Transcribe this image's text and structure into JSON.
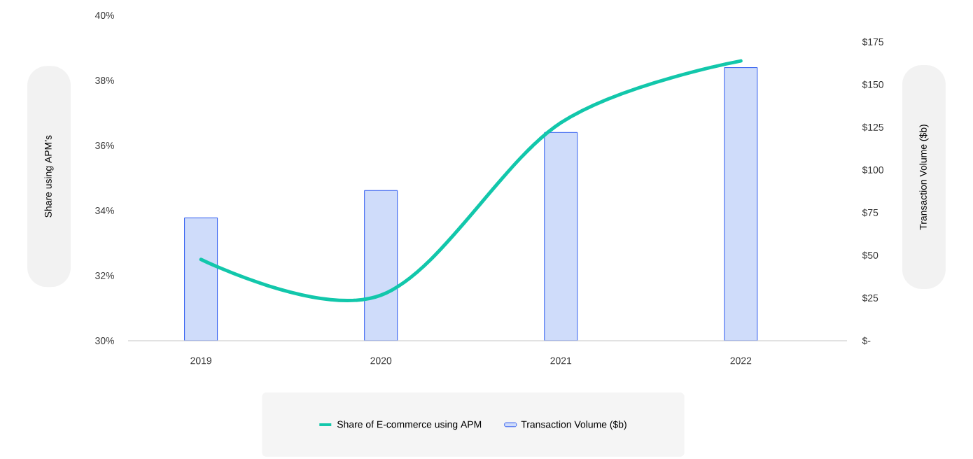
{
  "chart_data": {
    "type": "bar",
    "categories": [
      "2019",
      "2020",
      "2021",
      "2022"
    ],
    "ylabel": "Share using APM’s",
    "y2label": "Transaction Volume ($b)",
    "series": [
      {
        "name": "Share of E-commerce using APM",
        "type": "line",
        "color": "#12c7ab",
        "values": [
          32.5,
          31.4,
          36.7,
          38.6
        ]
      },
      {
        "name": "Transaction Volume ($b)",
        "axis": "y2",
        "color": "#cfdcfa",
        "values": [
          72,
          88,
          122,
          160
        ]
      }
    ],
    "ylim": [
      30,
      40
    ],
    "yticks": [
      {
        "value": 30,
        "label": "30%"
      },
      {
        "value": 32,
        "label": "32%"
      },
      {
        "value": 34,
        "label": "34%"
      },
      {
        "value": 36,
        "label": "36%"
      },
      {
        "value": 38,
        "label": "38%"
      },
      {
        "value": 40,
        "label": "40%"
      }
    ],
    "y2lim": [
      0,
      175
    ],
    "y2ticks": [
      {
        "value": 0,
        "label": "$-"
      },
      {
        "value": 25,
        "label": "$25"
      },
      {
        "value": 50,
        "label": "$50"
      },
      {
        "value": 75,
        "label": "$75"
      },
      {
        "value": 100,
        "label": "$100"
      },
      {
        "value": 125,
        "label": "$125"
      },
      {
        "value": 150,
        "label": "$150"
      },
      {
        "value": 175,
        "label": "$175"
      }
    ],
    "legend": "bottom"
  }
}
